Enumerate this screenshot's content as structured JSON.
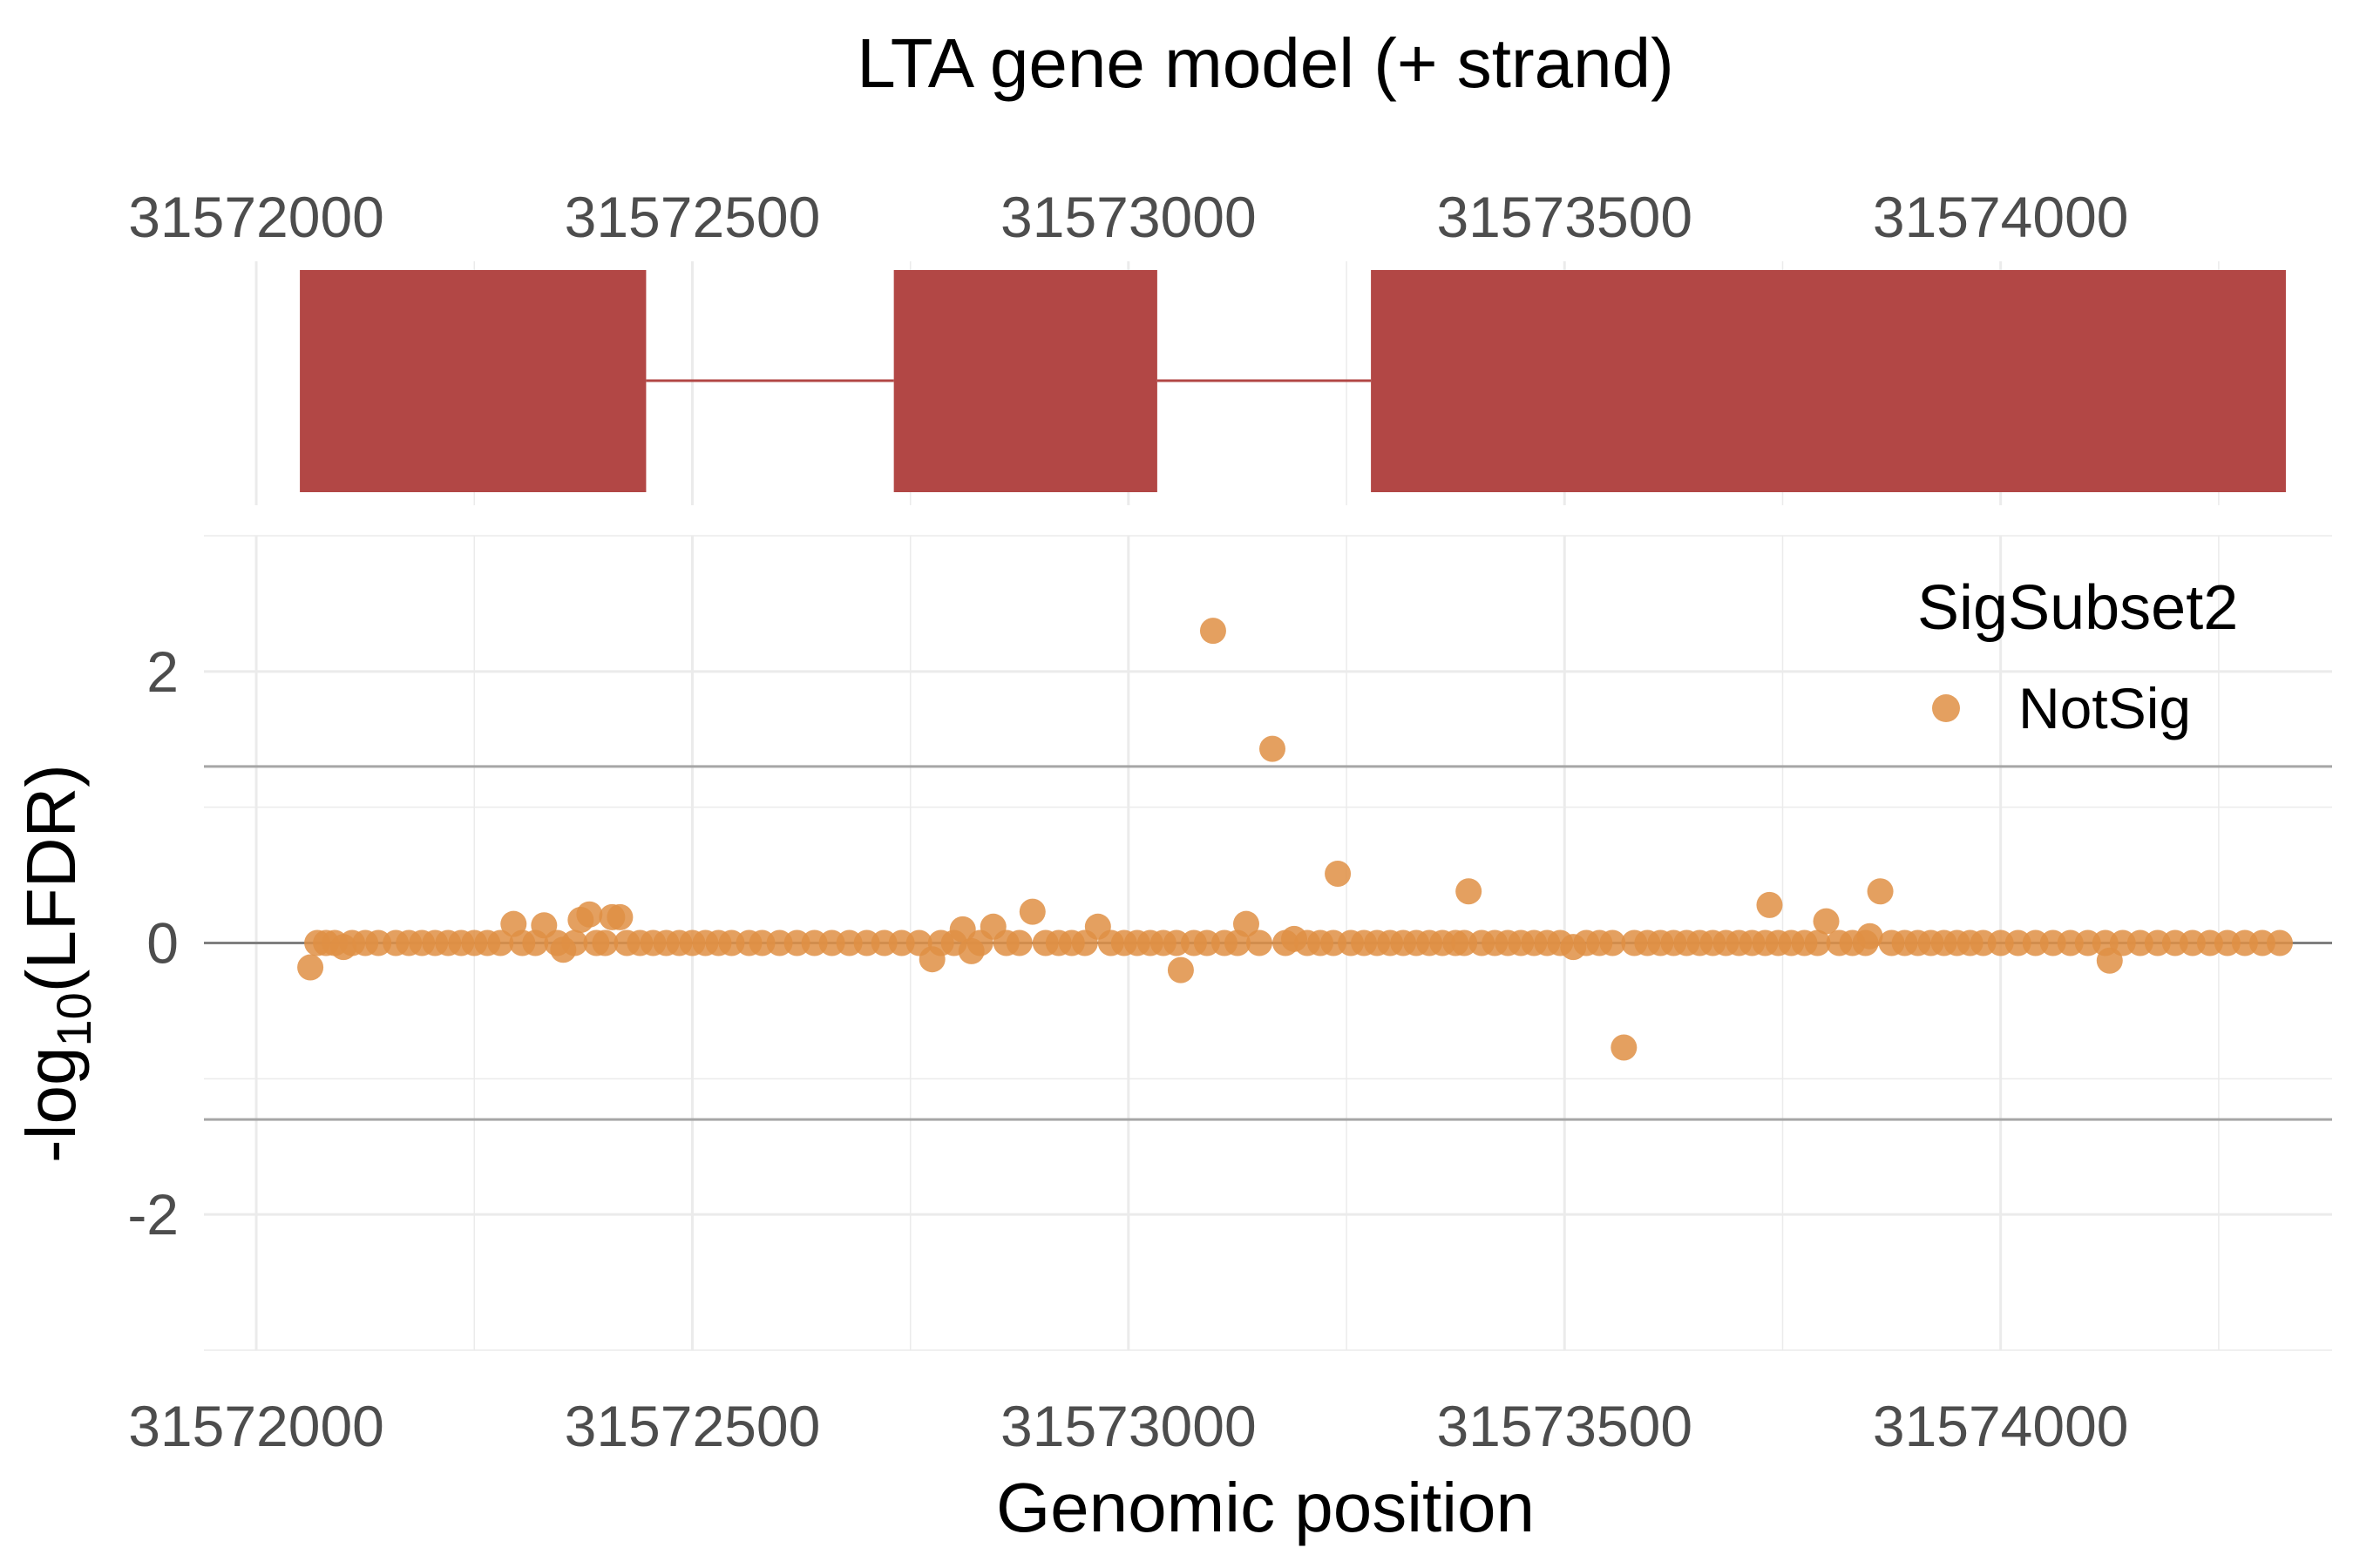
{
  "title": "LTA gene model (+ strand)",
  "colors": {
    "exon": "#b24745",
    "point": "#df8f44",
    "grid": "#ebebeb",
    "threshold": "#a6a6a6",
    "zero_line": "#7f7f7f",
    "tick_text": "#4d4d4d"
  },
  "chart_data": {
    "type": "scatter",
    "gene_model": {
      "title": "LTA gene model (+ strand)",
      "strand": "+",
      "exons": [
        {
          "start": 31572050,
          "end": 31572447
        },
        {
          "start": 31572731,
          "end": 31573033
        },
        {
          "start": 31573278,
          "end": 31574327
        }
      ],
      "introns": [
        {
          "start": 31572447,
          "end": 31572731
        },
        {
          "start": 31573033,
          "end": 31573278
        }
      ],
      "x_ticks": [
        "31572000",
        "31572500",
        "31573000",
        "31573500",
        "31574000"
      ]
    },
    "xlabel": "Genomic position",
    "ylabel_parts": {
      "main": "-log",
      "sub": "10",
      "rest": "(LFDR)"
    },
    "xlim": [
      31571940,
      31574380
    ],
    "ylim": [
      -3.0,
      3.0
    ],
    "x_ticks": [
      "31572000",
      "31572500",
      "31573000",
      "31573500",
      "31574000"
    ],
    "y_ticks": [
      -2,
      0,
      2
    ],
    "threshold_lines": [
      1.3,
      -1.3
    ],
    "zero_line": 0,
    "grid": true,
    "legend": {
      "title": "SigSubset2",
      "position": "top-right",
      "entries": [
        {
          "label": "NotSig",
          "color": "#df8f44"
        }
      ]
    },
    "series": [
      {
        "name": "NotSig",
        "points": [
          [
            31572062,
            -0.18
          ],
          [
            31572070,
            0.0
          ],
          [
            31572080,
            0.0
          ],
          [
            31572090,
            0.0
          ],
          [
            31572100,
            -0.03
          ],
          [
            31572110,
            0.0
          ],
          [
            31572125,
            0.0
          ],
          [
            31572140,
            0.0
          ],
          [
            31572160,
            0.0
          ],
          [
            31572175,
            0.0
          ],
          [
            31572190,
            0.0
          ],
          [
            31572205,
            0.0
          ],
          [
            31572220,
            0.0
          ],
          [
            31572235,
            0.0
          ],
          [
            31572250,
            0.0
          ],
          [
            31572265,
            0.0
          ],
          [
            31572280,
            0.0
          ],
          [
            31572295,
            0.14
          ],
          [
            31572305,
            0.0
          ],
          [
            31572320,
            0.0
          ],
          [
            31572330,
            0.13
          ],
          [
            31572345,
            0.0
          ],
          [
            31572352,
            -0.05
          ],
          [
            31572365,
            0.0
          ],
          [
            31572372,
            0.17
          ],
          [
            31572382,
            0.21
          ],
          [
            31572390,
            0.0
          ],
          [
            31572400,
            0.0
          ],
          [
            31572408,
            0.19
          ],
          [
            31572417,
            0.19
          ],
          [
            31572425,
            0.0
          ],
          [
            31572440,
            0.0
          ],
          [
            31572455,
            0.0
          ],
          [
            31572470,
            0.0
          ],
          [
            31572485,
            0.0
          ],
          [
            31572500,
            0.0
          ],
          [
            31572515,
            0.0
          ],
          [
            31572530,
            0.0
          ],
          [
            31572545,
            0.0
          ],
          [
            31572565,
            0.0
          ],
          [
            31572580,
            0.0
          ],
          [
            31572600,
            0.0
          ],
          [
            31572620,
            0.0
          ],
          [
            31572640,
            0.0
          ],
          [
            31572660,
            0.0
          ],
          [
            31572680,
            0.0
          ],
          [
            31572700,
            0.0
          ],
          [
            31572720,
            0.0
          ],
          [
            31572740,
            0.0
          ],
          [
            31572760,
            0.0
          ],
          [
            31572775,
            -0.12
          ],
          [
            31572785,
            0.0
          ],
          [
            31572800,
            0.0
          ],
          [
            31572810,
            0.1
          ],
          [
            31572820,
            -0.06
          ],
          [
            31572830,
            0.0
          ],
          [
            31572845,
            0.12
          ],
          [
            31572860,
            0.0
          ],
          [
            31572875,
            0.0
          ],
          [
            31572890,
            0.23
          ],
          [
            31572905,
            0.0
          ],
          [
            31572920,
            0.0
          ],
          [
            31572935,
            0.0
          ],
          [
            31572950,
            0.0
          ],
          [
            31572965,
            0.12
          ],
          [
            31572980,
            0.0
          ],
          [
            31572995,
            0.0
          ],
          [
            31573010,
            0.0
          ],
          [
            31573025,
            0.0
          ],
          [
            31573040,
            0.0
          ],
          [
            31573055,
            0.0
          ],
          [
            31573060,
            -0.2
          ],
          [
            31573075,
            0.0
          ],
          [
            31573090,
            0.0
          ],
          [
            31573097,
            2.3
          ],
          [
            31573110,
            0.0
          ],
          [
            31573125,
            0.0
          ],
          [
            31573135,
            0.14
          ],
          [
            31573150,
            0.0
          ],
          [
            31573165,
            1.43
          ],
          [
            31573180,
            0.0
          ],
          [
            31573190,
            0.03
          ],
          [
            31573205,
            0.0
          ],
          [
            31573220,
            0.0
          ],
          [
            31573235,
            0.0
          ],
          [
            31573240,
            0.51
          ],
          [
            31573255,
            0.0
          ],
          [
            31573270,
            0.0
          ],
          [
            31573285,
            0.0
          ],
          [
            31573300,
            0.0
          ],
          [
            31573315,
            0.0
          ],
          [
            31573330,
            0.0
          ],
          [
            31573345,
            0.0
          ],
          [
            31573360,
            0.0
          ],
          [
            31573375,
            0.0
          ],
          [
            31573385,
            0.0
          ],
          [
            31573390,
            0.38
          ],
          [
            31573405,
            0.0
          ],
          [
            31573420,
            0.0
          ],
          [
            31573435,
            0.0
          ],
          [
            31573450,
            0.0
          ],
          [
            31573465,
            0.0
          ],
          [
            31573480,
            0.0
          ],
          [
            31573495,
            0.0
          ],
          [
            31573510,
            -0.03
          ],
          [
            31573525,
            0.0
          ],
          [
            31573540,
            0.0
          ],
          [
            31573555,
            0.0
          ],
          [
            31573568,
            -0.77
          ],
          [
            31573580,
            0.0
          ],
          [
            31573595,
            0.0
          ],
          [
            31573610,
            0.0
          ],
          [
            31573625,
            0.0
          ],
          [
            31573640,
            0.0
          ],
          [
            31573655,
            0.0
          ],
          [
            31573670,
            0.0
          ],
          [
            31573685,
            0.0
          ],
          [
            31573700,
            0.0
          ],
          [
            31573715,
            0.0
          ],
          [
            31573730,
            0.0
          ],
          [
            31573735,
            0.28
          ],
          [
            31573745,
            0.0
          ],
          [
            31573760,
            0.0
          ],
          [
            31573775,
            0.0
          ],
          [
            31573790,
            0.0
          ],
          [
            31573800,
            0.16
          ],
          [
            31573815,
            0.0
          ],
          [
            31573830,
            0.0
          ],
          [
            31573845,
            0.0
          ],
          [
            31573850,
            0.05
          ],
          [
            31573862,
            0.38
          ],
          [
            31573875,
            0.0
          ],
          [
            31573890,
            0.0
          ],
          [
            31573905,
            0.0
          ],
          [
            31573920,
            0.0
          ],
          [
            31573935,
            0.0
          ],
          [
            31573950,
            0.0
          ],
          [
            31573965,
            0.0
          ],
          [
            31573980,
            0.0
          ],
          [
            31574000,
            0.0
          ],
          [
            31574020,
            0.0
          ],
          [
            31574040,
            0.0
          ],
          [
            31574060,
            0.0
          ],
          [
            31574080,
            0.0
          ],
          [
            31574100,
            0.0
          ],
          [
            31574120,
            0.0
          ],
          [
            31574125,
            -0.13
          ],
          [
            31574140,
            0.0
          ],
          [
            31574160,
            0.0
          ],
          [
            31574180,
            0.0
          ],
          [
            31574200,
            0.0
          ],
          [
            31574220,
            0.0
          ],
          [
            31574240,
            0.0
          ],
          [
            31574260,
            0.0
          ],
          [
            31574280,
            0.0
          ],
          [
            31574300,
            0.0
          ],
          [
            31574320,
            0.0
          ]
        ]
      }
    ]
  }
}
